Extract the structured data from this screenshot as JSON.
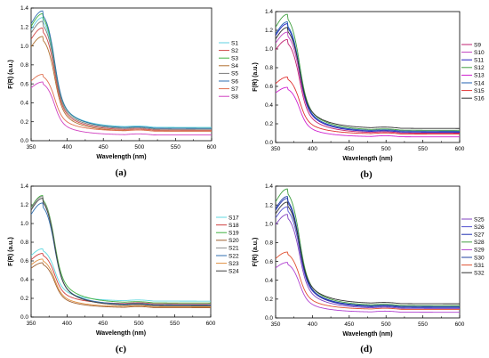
{
  "chart_data": [
    {
      "type": "line",
      "caption": "(a)",
      "xlabel": "Wavelength (nm)",
      "ylabel": "F(R) (a.u.)",
      "xlim": [
        350,
        600
      ],
      "ylim": [
        0.0,
        1.4
      ],
      "xticks": [
        "350",
        "400",
        "450",
        "500",
        "550",
        "600"
      ],
      "yticks": [
        "0.0",
        "0.2",
        "0.4",
        "0.6",
        "0.8",
        "1.0",
        "1.2",
        "1.4"
      ],
      "legend_position": "right",
      "series": [
        {
          "name": "S1",
          "color": "#5fd0e0",
          "peak": 1.3,
          "tail": 0.14
        },
        {
          "name": "S2",
          "color": "#d04848",
          "peak": 1.19,
          "tail": 0.11
        },
        {
          "name": "S3",
          "color": "#40b040",
          "peak": 1.34,
          "tail": 0.13
        },
        {
          "name": "S4",
          "color": "#b07030",
          "peak": 1.1,
          "tail": 0.1
        },
        {
          "name": "S5",
          "color": "#7a7a7a",
          "peak": 1.26,
          "tail": 0.12
        },
        {
          "name": "S6",
          "color": "#2f6fb0",
          "peak": 1.37,
          "tail": 0.13
        },
        {
          "name": "S7",
          "color": "#e07050",
          "peak": 0.7,
          "tail": 0.1
        },
        {
          "name": "S8",
          "color": "#d040c0",
          "peak": 0.62,
          "tail": 0.06
        }
      ]
    },
    {
      "type": "line",
      "caption": "(b)",
      "xlabel": "Wavelength (nm)",
      "ylabel": "F(R) (a.u.)",
      "xlim": [
        350,
        600
      ],
      "ylim": [
        0.0,
        1.4
      ],
      "xticks": [
        "350",
        "400",
        "450",
        "500",
        "550",
        "600"
      ],
      "yticks": [
        "0.0",
        "0.2",
        "0.4",
        "0.6",
        "0.8",
        "1.0",
        "1.2",
        "1.4"
      ],
      "legend_position": "right",
      "series": [
        {
          "name": "S9",
          "color": "#c02070",
          "peak": 1.1,
          "tail": 0.1
        },
        {
          "name": "S10",
          "color": "#c040c0",
          "peak": 1.18,
          "tail": 0.12
        },
        {
          "name": "S11",
          "color": "#2020c0",
          "peak": 1.27,
          "tail": 0.11
        },
        {
          "name": "S12",
          "color": "#40a040",
          "peak": 1.37,
          "tail": 0.13
        },
        {
          "name": "S13",
          "color": "#d020d0",
          "peak": 0.59,
          "tail": 0.06
        },
        {
          "name": "S14",
          "color": "#2060b0",
          "peak": 1.29,
          "tail": 0.12
        },
        {
          "name": "S15",
          "color": "#e03030",
          "peak": 0.7,
          "tail": 0.09
        },
        {
          "name": "S16",
          "color": "#303030",
          "peak": 1.23,
          "tail": 0.15
        }
      ]
    },
    {
      "type": "line",
      "caption": "(c)",
      "xlabel": "Wavelength (nm)",
      "ylabel": "F(R) (a.u.)",
      "xlim": [
        350,
        600
      ],
      "ylim": [
        0.0,
        1.4
      ],
      "xticks": [
        "350",
        "400",
        "450",
        "500",
        "550",
        "600"
      ],
      "yticks": [
        "0.0",
        "0.2",
        "0.4",
        "0.6",
        "0.8",
        "1.0",
        "1.2",
        "1.4"
      ],
      "legend_position": "right",
      "series": [
        {
          "name": "S17",
          "color": "#60d8e0",
          "peak": 0.73,
          "tail": 0.17
        },
        {
          "name": "S18",
          "color": "#d04040",
          "peak": 0.68,
          "tail": 0.14
        },
        {
          "name": "S19",
          "color": "#40b040",
          "peak": 1.3,
          "tail": 0.15
        },
        {
          "name": "S20",
          "color": "#a06030",
          "peak": 0.58,
          "tail": 0.1
        },
        {
          "name": "S21",
          "color": "#8a8a8a",
          "peak": 1.29,
          "tail": 0.12
        },
        {
          "name": "S22",
          "color": "#2f6fb0",
          "peak": 1.22,
          "tail": 0.13
        },
        {
          "name": "S23",
          "color": "#e09040",
          "peak": 0.62,
          "tail": 0.11
        },
        {
          "name": "S24",
          "color": "#404040",
          "peak": 1.27,
          "tail": 0.12
        }
      ]
    },
    {
      "type": "line",
      "caption": "(d)",
      "xlabel": "Wavelength (nm)",
      "ylabel": "F(R) (a.u.)",
      "xlim": [
        350,
        600
      ],
      "ylim": [
        0.0,
        1.4
      ],
      "xticks": [
        "350",
        "400",
        "450",
        "500",
        "550",
        "600"
      ],
      "yticks": [
        "0.0",
        "0.2",
        "0.4",
        "0.6",
        "0.8",
        "1.0",
        "1.2",
        "1.4"
      ],
      "legend_position": "right",
      "series": [
        {
          "name": "S25",
          "color": "#8040c0",
          "peak": 1.1,
          "tail": 0.1
        },
        {
          "name": "S26",
          "color": "#5050d0",
          "peak": 1.18,
          "tail": 0.12
        },
        {
          "name": "S27",
          "color": "#2030b0",
          "peak": 1.27,
          "tail": 0.11
        },
        {
          "name": "S28",
          "color": "#40a040",
          "peak": 1.37,
          "tail": 0.13
        },
        {
          "name": "S29",
          "color": "#b040d0",
          "peak": 0.59,
          "tail": 0.06
        },
        {
          "name": "S30",
          "color": "#2040a0",
          "peak": 1.29,
          "tail": 0.12
        },
        {
          "name": "S31",
          "color": "#e05030",
          "peak": 0.7,
          "tail": 0.09
        },
        {
          "name": "S32",
          "color": "#303030",
          "peak": 1.23,
          "tail": 0.15
        }
      ]
    }
  ]
}
